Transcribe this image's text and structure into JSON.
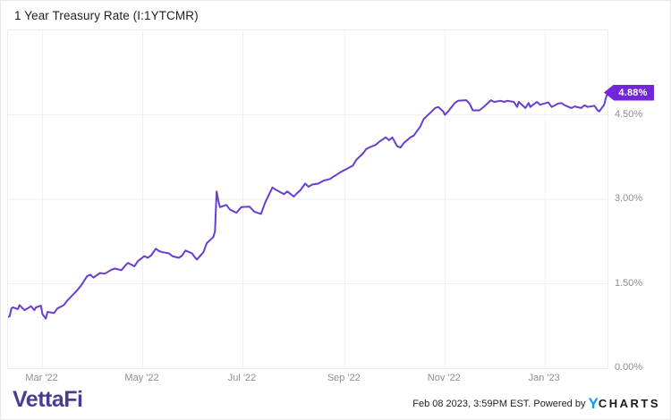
{
  "header": {
    "title": "1 Year Treasury Rate (I:1YTCMR)"
  },
  "footer": {
    "vettafi_logo_text": "VettaFi",
    "timestamp": "Feb 08 2023, 3:59PM EST. Powered by",
    "ycharts_logo_y": "Y",
    "ycharts_logo_rest": "CHARTS"
  },
  "colors": {
    "line": "#6a3dd1",
    "badge": "#7126d9",
    "grid": "#efefef",
    "plot_border": "#ececec",
    "axis_text": "#8e8e8e",
    "vettafi_indigo": "#473d96",
    "ycharts_blue": "#0d9af0"
  },
  "chart_data": {
    "type": "line",
    "title": "1 Year Treasury Rate (I:1YTCMR)",
    "xlabel": "",
    "ylabel": "",
    "x_range": [
      "2022-02-08",
      "2023-02-08"
    ],
    "y_range": [
      0,
      6
    ],
    "grid": true,
    "legend_position": "none",
    "last_value": 4.88,
    "last_value_label": "4.88%",
    "y_ticks": [
      {
        "value": 4.5,
        "label": "4.50%"
      },
      {
        "value": 3.0,
        "label": "3.00%"
      },
      {
        "value": 1.5,
        "label": "1.50%"
      },
      {
        "value": 0.0,
        "label": "0.00%"
      }
    ],
    "x_ticks": [
      {
        "date": "2022-03-01",
        "label": "Mar '22"
      },
      {
        "date": "2022-05-01",
        "label": "May '22"
      },
      {
        "date": "2022-07-01",
        "label": "Jul '22"
      },
      {
        "date": "2022-09-01",
        "label": "Sep '22"
      },
      {
        "date": "2022-11-01",
        "label": "Nov '22"
      },
      {
        "date": "2023-01-01",
        "label": "Jan '23"
      }
    ],
    "series": [
      {
        "name": "1 Year Treasury Rate",
        "points": [
          [
            "2022-02-08",
            0.91
          ],
          [
            "2022-02-09",
            0.92
          ],
          [
            "2022-02-10",
            1.06
          ],
          [
            "2022-02-11",
            1.08
          ],
          [
            "2022-02-14",
            1.05
          ],
          [
            "2022-02-15",
            1.12
          ],
          [
            "2022-02-17",
            1.06
          ],
          [
            "2022-02-18",
            1.03
          ],
          [
            "2022-02-22",
            1.1
          ],
          [
            "2022-02-24",
            1.03
          ],
          [
            "2022-02-25",
            1.08
          ],
          [
            "2022-02-28",
            1.11
          ],
          [
            "2022-03-01",
            0.96
          ],
          [
            "2022-03-03",
            0.88
          ],
          [
            "2022-03-04",
            1.0
          ],
          [
            "2022-03-08",
            0.98
          ],
          [
            "2022-03-10",
            1.06
          ],
          [
            "2022-03-14",
            1.12
          ],
          [
            "2022-03-16",
            1.2
          ],
          [
            "2022-03-18",
            1.26
          ],
          [
            "2022-03-22",
            1.38
          ],
          [
            "2022-03-25",
            1.49
          ],
          [
            "2022-03-28",
            1.63
          ],
          [
            "2022-03-30",
            1.66
          ],
          [
            "2022-04-01",
            1.61
          ],
          [
            "2022-04-05",
            1.69
          ],
          [
            "2022-04-08",
            1.68
          ],
          [
            "2022-04-12",
            1.75
          ],
          [
            "2022-04-14",
            1.77
          ],
          [
            "2022-04-18",
            1.74
          ],
          [
            "2022-04-20",
            1.81
          ],
          [
            "2022-04-22",
            1.87
          ],
          [
            "2022-04-26",
            1.81
          ],
          [
            "2022-04-28",
            1.9
          ],
          [
            "2022-05-02",
            1.99
          ],
          [
            "2022-05-04",
            1.96
          ],
          [
            "2022-05-06",
            2.0
          ],
          [
            "2022-05-09",
            2.12
          ],
          [
            "2022-05-11",
            2.08
          ],
          [
            "2022-05-13",
            2.06
          ],
          [
            "2022-05-17",
            2.04
          ],
          [
            "2022-05-19",
            1.99
          ],
          [
            "2022-05-23",
            1.96
          ],
          [
            "2022-05-25",
            2.0
          ],
          [
            "2022-05-27",
            2.09
          ],
          [
            "2022-05-31",
            2.04
          ],
          [
            "2022-06-02",
            1.96
          ],
          [
            "2022-06-03",
            1.93
          ],
          [
            "2022-06-07",
            2.06
          ],
          [
            "2022-06-09",
            2.22
          ],
          [
            "2022-06-13",
            2.33
          ],
          [
            "2022-06-14",
            2.43
          ],
          [
            "2022-06-15",
            3.14
          ],
          [
            "2022-06-16",
            2.98
          ],
          [
            "2022-06-17",
            2.86
          ],
          [
            "2022-06-21",
            2.9
          ],
          [
            "2022-06-23",
            2.82
          ],
          [
            "2022-06-27",
            2.76
          ],
          [
            "2022-06-30",
            2.86
          ],
          [
            "2022-07-05",
            2.87
          ],
          [
            "2022-07-08",
            2.78
          ],
          [
            "2022-07-12",
            2.74
          ],
          [
            "2022-07-14",
            2.9
          ],
          [
            "2022-07-15",
            2.97
          ],
          [
            "2022-07-19",
            3.21
          ],
          [
            "2022-07-21",
            3.17
          ],
          [
            "2022-07-26",
            3.09
          ],
          [
            "2022-07-28",
            3.14
          ],
          [
            "2022-08-01",
            3.05
          ],
          [
            "2022-08-03",
            3.11
          ],
          [
            "2022-08-05",
            3.16
          ],
          [
            "2022-08-08",
            3.28
          ],
          [
            "2022-08-10",
            3.22
          ],
          [
            "2022-08-12",
            3.26
          ],
          [
            "2022-08-16",
            3.28
          ],
          [
            "2022-08-19",
            3.33
          ],
          [
            "2022-08-23",
            3.36
          ],
          [
            "2022-08-25",
            3.4
          ],
          [
            "2022-08-30",
            3.49
          ],
          [
            "2022-09-01",
            3.52
          ],
          [
            "2022-09-06",
            3.6
          ],
          [
            "2022-09-08",
            3.7
          ],
          [
            "2022-09-12",
            3.81
          ],
          [
            "2022-09-14",
            3.89
          ],
          [
            "2022-09-16",
            3.92
          ],
          [
            "2022-09-20",
            3.97
          ],
          [
            "2022-09-22",
            4.02
          ],
          [
            "2022-09-26",
            4.1
          ],
          [
            "2022-09-28",
            4.05
          ],
          [
            "2022-09-30",
            4.1
          ],
          [
            "2022-10-03",
            3.94
          ],
          [
            "2022-10-05",
            3.92
          ],
          [
            "2022-10-07",
            4.0
          ],
          [
            "2022-10-11",
            4.1
          ],
          [
            "2022-10-13",
            4.13
          ],
          [
            "2022-10-17",
            4.29
          ],
          [
            "2022-10-19",
            4.42
          ],
          [
            "2022-10-21",
            4.48
          ],
          [
            "2022-10-24",
            4.56
          ],
          [
            "2022-10-26",
            4.62
          ],
          [
            "2022-10-28",
            4.64
          ],
          [
            "2022-10-31",
            4.56
          ],
          [
            "2022-11-01",
            4.5
          ],
          [
            "2022-11-03",
            4.56
          ],
          [
            "2022-11-07",
            4.71
          ],
          [
            "2022-11-09",
            4.75
          ],
          [
            "2022-11-14",
            4.76
          ],
          [
            "2022-11-16",
            4.7
          ],
          [
            "2022-11-18",
            4.58
          ],
          [
            "2022-11-22",
            4.58
          ],
          [
            "2022-11-25",
            4.65
          ],
          [
            "2022-11-29",
            4.76
          ],
          [
            "2022-12-01",
            4.73
          ],
          [
            "2022-12-05",
            4.75
          ],
          [
            "2022-12-07",
            4.73
          ],
          [
            "2022-12-09",
            4.75
          ],
          [
            "2022-12-13",
            4.73
          ],
          [
            "2022-12-15",
            4.64
          ],
          [
            "2022-12-16",
            4.73
          ],
          [
            "2022-12-20",
            4.62
          ],
          [
            "2022-12-22",
            4.71
          ],
          [
            "2022-12-23",
            4.64
          ],
          [
            "2022-12-27",
            4.73
          ],
          [
            "2022-12-29",
            4.68
          ],
          [
            "2023-01-03",
            4.72
          ],
          [
            "2023-01-05",
            4.64
          ],
          [
            "2023-01-09",
            4.7
          ],
          [
            "2023-01-11",
            4.71
          ],
          [
            "2023-01-13",
            4.67
          ],
          [
            "2023-01-17",
            4.62
          ],
          [
            "2023-01-19",
            4.65
          ],
          [
            "2023-01-23",
            4.62
          ],
          [
            "2023-01-25",
            4.67
          ],
          [
            "2023-01-27",
            4.64
          ],
          [
            "2023-01-31",
            4.66
          ],
          [
            "2023-02-01",
            4.62
          ],
          [
            "2023-02-02",
            4.58
          ],
          [
            "2023-02-03",
            4.56
          ],
          [
            "2023-02-06",
            4.68
          ],
          [
            "2023-02-07",
            4.8
          ],
          [
            "2023-02-08",
            4.88
          ]
        ]
      }
    ]
  }
}
